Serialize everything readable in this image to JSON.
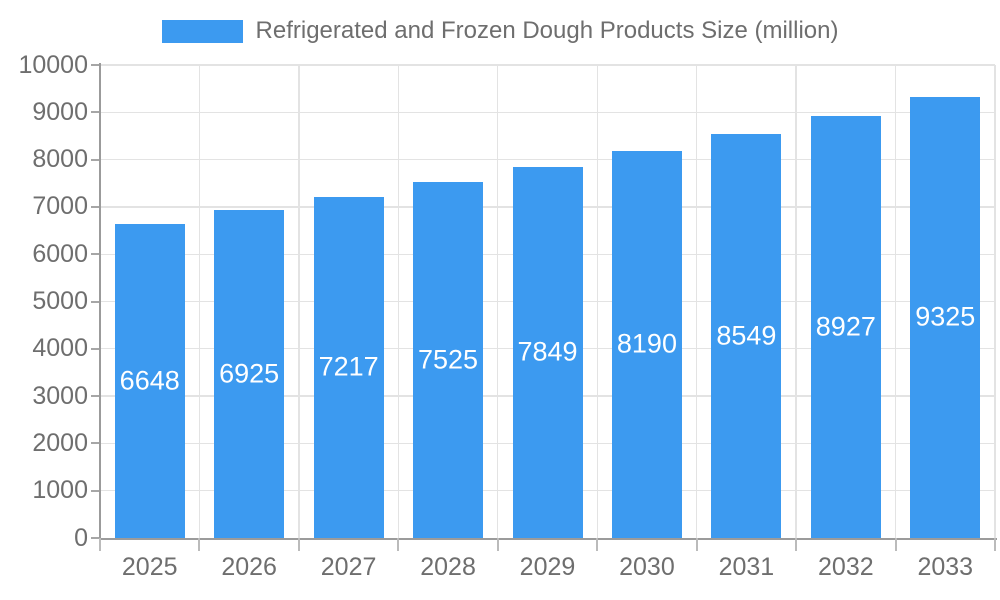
{
  "legend": {
    "label": "Refrigerated and Frozen Dough Products Size (million)"
  },
  "chart_data": {
    "type": "bar",
    "title": "Refrigerated and Frozen Dough Products Size (million)",
    "categories": [
      "2025",
      "2026",
      "2027",
      "2028",
      "2029",
      "2030",
      "2031",
      "2032",
      "2033"
    ],
    "values": [
      6648,
      6925,
      7217,
      7525,
      7849,
      8190,
      8549,
      8927,
      9325
    ],
    "xlabel": "",
    "ylabel": "",
    "ylim": [
      0,
      10000
    ],
    "ytick_step": 1000,
    "yticks": [
      0,
      1000,
      2000,
      3000,
      4000,
      5000,
      6000,
      7000,
      8000,
      9000,
      10000
    ],
    "grid": true,
    "legend_position": "top-center",
    "value_labels": "inside-center-white",
    "colors": {
      "bar": "#3C9AF0",
      "value_label": "#FFFFFF",
      "axis_text": "#6E6E6E",
      "legend_text": "#6E6E6E",
      "axis_line": "#9B9B9B",
      "gridline": "#E3E3E3",
      "background": "#FFFFFF"
    }
  }
}
